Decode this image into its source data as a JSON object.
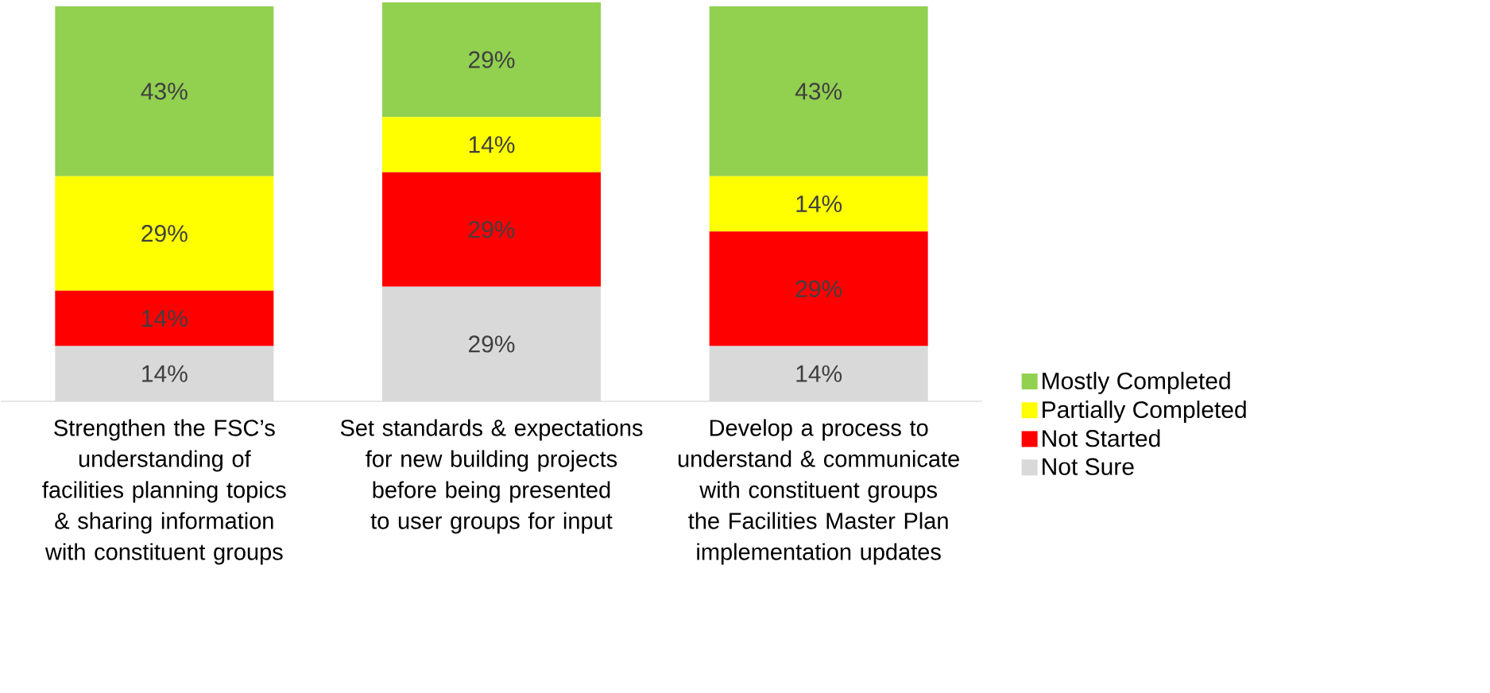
{
  "chart_data": {
    "type": "bar",
    "stacked": true,
    "legend": "right",
    "categories": [
      "Strengthen the FSC’s understanding of facilities planning topics & sharing information with constituent groups",
      "Set standards & expectations for new building projects before being presented to user groups for input",
      "Develop a process to understand & communicate with constituent groups the Facilities Master Plan implementation updates"
    ],
    "series": [
      {
        "name": "Not Sure",
        "color": "#d9d9d9",
        "values": [
          14,
          29,
          14
        ],
        "value_labels": [
          "14%",
          "29%",
          "14%"
        ]
      },
      {
        "name": "Not Started",
        "color": "#ff0000",
        "values": [
          14,
          29,
          29
        ],
        "value_labels": [
          "14%",
          "29%",
          "29%"
        ]
      },
      {
        "name": "Partially Completed",
        "color": "#ffff00",
        "values": [
          29,
          14,
          14
        ],
        "value_labels": [
          "29%",
          "14%",
          "14%"
        ]
      },
      {
        "name": "Mostly Completed",
        "color": "#92d050",
        "values": [
          43,
          29,
          43
        ],
        "value_labels": [
          "43%",
          "29%",
          "43%"
        ]
      }
    ]
  }
}
